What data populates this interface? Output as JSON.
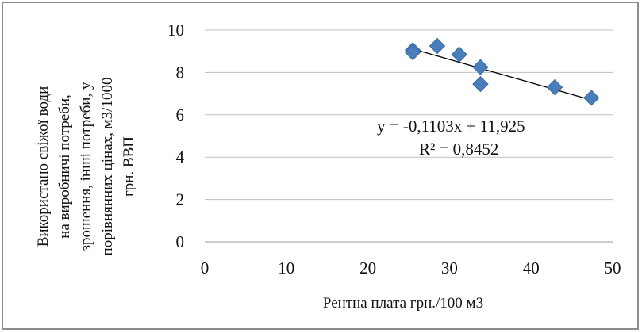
{
  "chart_data": {
    "type": "scatter",
    "title": "",
    "xlabel": "Рентна плата грн./100 м3",
    "ylabel_lines": [
      "Використано  свіжої води",
      "на виробничі потреби,",
      "зрошення, інші потреби, у",
      "порівнянних цінах, м3/1000",
      "грн. ВВП"
    ],
    "xlim": [
      0,
      50
    ],
    "ylim": [
      0,
      10
    ],
    "xticks": [
      "0",
      "10",
      "20",
      "30",
      "40",
      "50"
    ],
    "yticks": [
      "0",
      "2",
      "4",
      "6",
      "8",
      "10"
    ],
    "grid": "horizontal",
    "marker": "diamond",
    "marker_color": "#4a7ebb",
    "points": [
      {
        "x": 25.5,
        "y": 9.05
      },
      {
        "x": 25.5,
        "y": 8.95
      },
      {
        "x": 28.5,
        "y": 9.25
      },
      {
        "x": 31.2,
        "y": 8.85
      },
      {
        "x": 33.8,
        "y": 8.25
      },
      {
        "x": 33.8,
        "y": 7.45
      },
      {
        "x": 42.9,
        "y": 7.3
      },
      {
        "x": 47.4,
        "y": 6.8
      }
    ],
    "trendline": {
      "slope": -0.1103,
      "intercept": 11.925,
      "x_range": [
        25.5,
        47.4
      ],
      "equation": "y = -0,1103x + 11,925",
      "r2": "R² = 0,8452"
    }
  }
}
